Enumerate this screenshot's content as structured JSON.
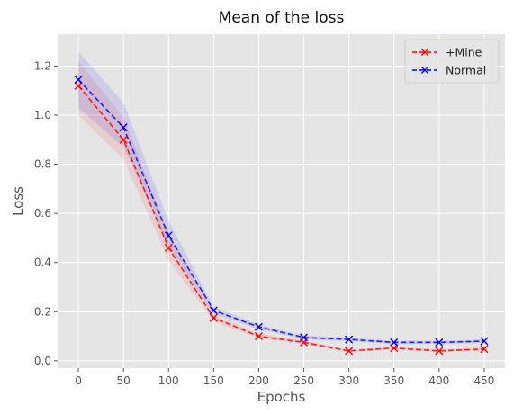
{
  "chart_data": {
    "type": "line",
    "title": "Mean of the loss",
    "xlabel": "Epochs",
    "ylabel": "Loss",
    "x": [
      0,
      50,
      100,
      150,
      200,
      250,
      300,
      350,
      400,
      450
    ],
    "xticks": [
      "0",
      "50",
      "100",
      "150",
      "200",
      "250",
      "300",
      "350",
      "400",
      "450"
    ],
    "yticks": [
      "0.0",
      "0.2",
      "0.4",
      "0.6",
      "0.8",
      "1.0",
      "1.2"
    ],
    "xlim": [
      -23,
      473
    ],
    "ylim": [
      -0.03,
      1.33
    ],
    "grid": true,
    "legend_position": "top-right",
    "series": [
      {
        "name": "+Mine",
        "color": "#ff0000",
        "linestyle": "dashed",
        "marker": "x",
        "values": [
          1.12,
          0.9,
          0.46,
          0.175,
          0.1,
          0.075,
          0.04,
          0.052,
          0.04,
          0.048
        ],
        "lower": [
          1.0,
          0.82,
          0.41,
          0.16,
          0.092,
          0.068,
          0.035,
          0.046,
          0.035,
          0.042
        ],
        "upper": [
          1.22,
          0.99,
          0.52,
          0.19,
          0.11,
          0.082,
          0.046,
          0.058,
          0.046,
          0.055
        ]
      },
      {
        "name": "Normal",
        "color": "#0000ff",
        "linestyle": "dashed",
        "marker": "x",
        "values": [
          1.145,
          0.95,
          0.51,
          0.205,
          0.138,
          0.095,
          0.087,
          0.075,
          0.075,
          0.08
        ],
        "lower": [
          1.03,
          0.87,
          0.47,
          0.19,
          0.128,
          0.088,
          0.08,
          0.068,
          0.068,
          0.073
        ],
        "upper": [
          1.26,
          1.05,
          0.57,
          0.22,
          0.148,
          0.102,
          0.094,
          0.082,
          0.082,
          0.087
        ]
      }
    ]
  }
}
